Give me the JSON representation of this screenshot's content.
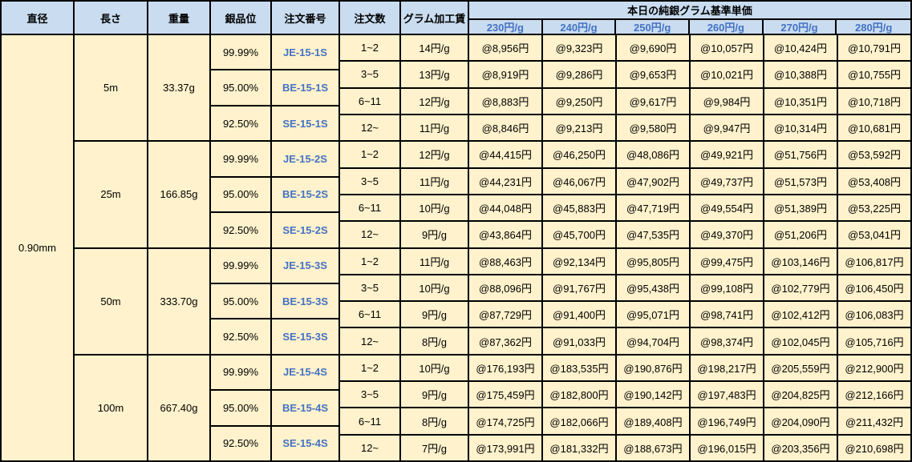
{
  "table": {
    "headers": {
      "diameter": "直径",
      "length": "長さ",
      "weight": "重量",
      "purity": "銀品位",
      "order_no": "注文番号",
      "order_qty": "注文数",
      "gram_fee": "グラム加工賃",
      "base_price_title": "本日の純銀グラム基準単価",
      "price_columns": [
        "230円/g",
        "240円/g",
        "250円/g",
        "260円/g",
        "270円/g",
        "280円/g"
      ]
    },
    "diameter_value": "0.90mm"
  },
  "groups": [
    {
      "length": "5m",
      "weight": "33.37g",
      "purities": [
        {
          "purity": "99.99%",
          "order_no": "JE-15-1S"
        },
        {
          "purity": "95.00%",
          "order_no": "BE-15-1S"
        },
        {
          "purity": "92.50%",
          "order_no": "SE-15-1S"
        }
      ],
      "rows": [
        {
          "qty": "1~2",
          "fee": "14円/g",
          "prices": [
            "@8,956円",
            "@9,323円",
            "@9,690円",
            "@10,057円",
            "@10,424円",
            "@10,791円"
          ]
        },
        {
          "qty": "3~5",
          "fee": "13円/g",
          "prices": [
            "@8,919円",
            "@9,286円",
            "@9,653円",
            "@10,021円",
            "@10,388円",
            "@10,755円"
          ]
        },
        {
          "qty": "6~11",
          "fee": "12円/g",
          "prices": [
            "@8,883円",
            "@9,250円",
            "@9,617円",
            "@9,984円",
            "@10,351円",
            "@10,718円"
          ]
        },
        {
          "qty": "12~",
          "fee": "11円/g",
          "prices": [
            "@8,846円",
            "@9,213円",
            "@9,580円",
            "@9,947円",
            "@10,314円",
            "@10,681円"
          ]
        }
      ]
    },
    {
      "length": "25m",
      "weight": "166.85g",
      "purities": [
        {
          "purity": "99.99%",
          "order_no": "JE-15-2S"
        },
        {
          "purity": "95.00%",
          "order_no": "BE-15-2S"
        },
        {
          "purity": "92.50%",
          "order_no": "SE-15-2S"
        }
      ],
      "rows": [
        {
          "qty": "1~2",
          "fee": "12円/g",
          "prices": [
            "@44,415円",
            "@46,250円",
            "@48,086円",
            "@49,921円",
            "@51,756円",
            "@53,592円"
          ]
        },
        {
          "qty": "3~5",
          "fee": "11円/g",
          "prices": [
            "@44,231円",
            "@46,067円",
            "@47,902円",
            "@49,737円",
            "@51,573円",
            "@53,408円"
          ]
        },
        {
          "qty": "6~11",
          "fee": "10円/g",
          "prices": [
            "@44,048円",
            "@45,883円",
            "@47,719円",
            "@49,554円",
            "@51,389円",
            "@53,225円"
          ]
        },
        {
          "qty": "12~",
          "fee": "9円/g",
          "prices": [
            "@43,864円",
            "@45,700円",
            "@47,535円",
            "@49,370円",
            "@51,206円",
            "@53,041円"
          ]
        }
      ]
    },
    {
      "length": "50m",
      "weight": "333.70g",
      "purities": [
        {
          "purity": "99.99%",
          "order_no": "JE-15-3S"
        },
        {
          "purity": "95.00%",
          "order_no": "BE-15-3S"
        },
        {
          "purity": "92.50%",
          "order_no": "SE-15-3S"
        }
      ],
      "rows": [
        {
          "qty": "1~2",
          "fee": "11円/g",
          "prices": [
            "@88,463円",
            "@92,134円",
            "@95,805円",
            "@99,475円",
            "@103,146円",
            "@106,817円"
          ]
        },
        {
          "qty": "3~5",
          "fee": "10円/g",
          "prices": [
            "@88,096円",
            "@91,767円",
            "@95,438円",
            "@99,108円",
            "@102,779円",
            "@106,450円"
          ]
        },
        {
          "qty": "6~11",
          "fee": "9円/g",
          "prices": [
            "@87,729円",
            "@91,400円",
            "@95,071円",
            "@98,741円",
            "@102,412円",
            "@106,083円"
          ]
        },
        {
          "qty": "12~",
          "fee": "8円/g",
          "prices": [
            "@87,362円",
            "@91,033円",
            "@94,704円",
            "@98,374円",
            "@102,045円",
            "@105,716円"
          ]
        }
      ]
    },
    {
      "length": "100m",
      "weight": "667.40g",
      "purities": [
        {
          "purity": "99.99%",
          "order_no": "JE-15-4S"
        },
        {
          "purity": "95.00%",
          "order_no": "BE-15-4S"
        },
        {
          "purity": "92.50%",
          "order_no": "SE-15-4S"
        }
      ],
      "rows": [
        {
          "qty": "1~2",
          "fee": "10円/g",
          "prices": [
            "@176,193円",
            "@183,535円",
            "@190,876円",
            "@198,217円",
            "@205,559円",
            "@212,900円"
          ]
        },
        {
          "qty": "3~5",
          "fee": "9円/g",
          "prices": [
            "@175,459円",
            "@182,800円",
            "@190,142円",
            "@197,483円",
            "@204,825円",
            "@212,166円"
          ]
        },
        {
          "qty": "6~11",
          "fee": "8円/g",
          "prices": [
            "@174,725円",
            "@182,066円",
            "@189,408円",
            "@196,749円",
            "@204,090円",
            "@211,432円"
          ]
        },
        {
          "qty": "12~",
          "fee": "7円/g",
          "prices": [
            "@173,991円",
            "@181,332円",
            "@188,673円",
            "@196,015円",
            "@203,356円",
            "@210,698円"
          ]
        }
      ]
    }
  ],
  "colors": {
    "header_bg": "#C9DCF0",
    "body_bg": "#FFF2CC",
    "accent_blue": "#4472C4",
    "border": "#000000"
  }
}
